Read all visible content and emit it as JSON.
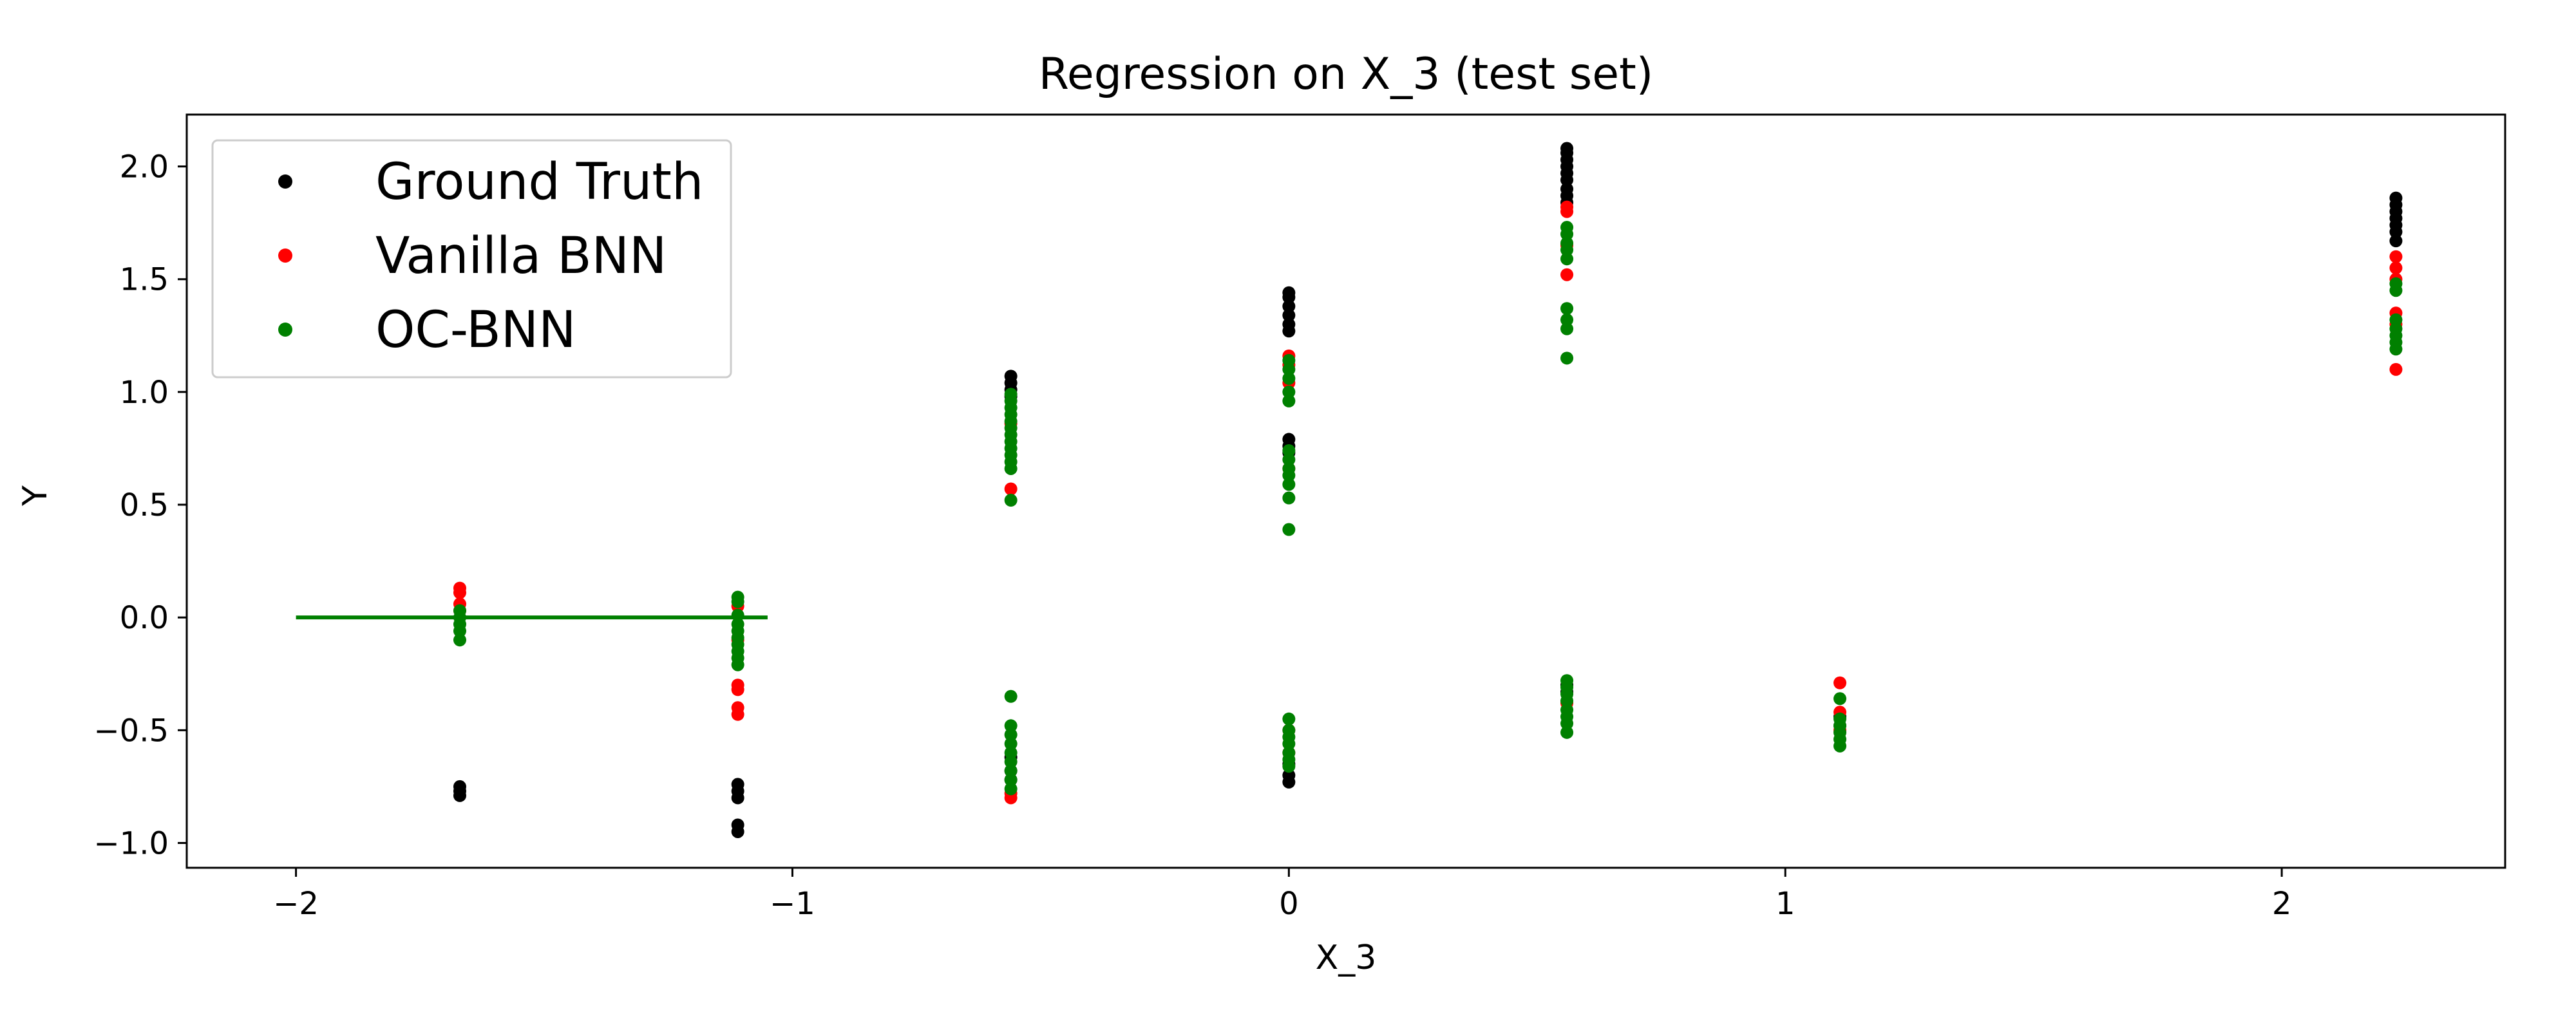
{
  "chart_data": {
    "type": "scatter",
    "title": "Regression on X_3 (test set)",
    "xlabel": "X_3",
    "ylabel": "Y",
    "xlim": [
      -2.22,
      2.45
    ],
    "ylim": [
      -1.11,
      2.23
    ],
    "xticks": [
      -2,
      -1,
      0,
      1,
      2
    ],
    "xtick_labels": [
      "−2",
      "−1",
      "0",
      "1",
      "2"
    ],
    "yticks": [
      -1.0,
      -0.5,
      0.0,
      0.5,
      1.0,
      1.5,
      2.0
    ],
    "ytick_labels": [
      "−1.0",
      "−0.5",
      "0.0",
      "0.5",
      "1.0",
      "1.5",
      "2.0"
    ],
    "grid": false,
    "legend_position": "top-left",
    "series": [
      {
        "name": "Ground Truth",
        "color": "#000000",
        "points": [
          [
            -1.67,
            -0.75
          ],
          [
            -1.67,
            -0.77
          ],
          [
            -1.67,
            -0.79
          ],
          [
            -1.11,
            -0.74
          ],
          [
            -1.11,
            -0.77
          ],
          [
            -1.11,
            -0.8
          ],
          [
            -1.11,
            -0.92
          ],
          [
            -1.11,
            -0.95
          ],
          [
            -0.56,
            1.07
          ],
          [
            -0.56,
            1.04
          ],
          [
            -0.56,
            1.01
          ],
          [
            -0.56,
            0.98
          ],
          [
            -0.56,
            -0.62
          ],
          [
            -0.56,
            -0.68
          ],
          [
            -0.56,
            -0.72
          ],
          [
            0.0,
            1.44
          ],
          [
            0.0,
            1.42
          ],
          [
            0.0,
            1.38
          ],
          [
            0.0,
            1.34
          ],
          [
            0.0,
            1.3
          ],
          [
            0.0,
            1.27
          ],
          [
            0.0,
            0.79
          ],
          [
            0.0,
            0.76
          ],
          [
            0.0,
            0.73
          ],
          [
            0.0,
            -0.65
          ],
          [
            0.0,
            -0.7
          ],
          [
            0.0,
            -0.73
          ],
          [
            0.56,
            2.08
          ],
          [
            0.56,
            2.06
          ],
          [
            0.56,
            2.03
          ],
          [
            0.56,
            2.0
          ],
          [
            0.56,
            1.97
          ],
          [
            0.56,
            1.94
          ],
          [
            0.56,
            1.9
          ],
          [
            0.56,
            1.87
          ],
          [
            0.56,
            1.84
          ],
          [
            0.56,
            -0.3
          ],
          [
            0.56,
            -0.33
          ],
          [
            1.11,
            -0.44
          ],
          [
            1.11,
            -0.48
          ],
          [
            2.23,
            1.86
          ],
          [
            2.23,
            1.83
          ],
          [
            2.23,
            1.8
          ],
          [
            2.23,
            1.77
          ],
          [
            2.23,
            1.74
          ],
          [
            2.23,
            1.71
          ],
          [
            2.23,
            1.67
          ]
        ]
      },
      {
        "name": "Vanilla BNN",
        "color": "#ff0000",
        "points": [
          [
            -1.67,
            0.13
          ],
          [
            -1.67,
            0.11
          ],
          [
            -1.67,
            0.06
          ],
          [
            -1.67,
            0.03
          ],
          [
            -1.11,
            0.05
          ],
          [
            -1.11,
            -0.1
          ],
          [
            -1.11,
            -0.3
          ],
          [
            -1.11,
            -0.32
          ],
          [
            -1.11,
            -0.4
          ],
          [
            -1.11,
            -0.43
          ],
          [
            -0.56,
            0.57
          ],
          [
            -0.56,
            0.86
          ],
          [
            -0.56,
            -0.78
          ],
          [
            -0.56,
            -0.8
          ],
          [
            0.0,
            1.16
          ],
          [
            0.0,
            1.12
          ],
          [
            0.0,
            1.04
          ],
          [
            0.0,
            0.66
          ],
          [
            0.0,
            -0.5
          ],
          [
            0.0,
            -0.6
          ],
          [
            0.56,
            1.82
          ],
          [
            0.56,
            1.8
          ],
          [
            0.56,
            1.65
          ],
          [
            0.56,
            1.52
          ],
          [
            0.56,
            -0.38
          ],
          [
            1.11,
            -0.29
          ],
          [
            1.11,
            -0.42
          ],
          [
            1.11,
            -0.5
          ],
          [
            2.23,
            1.6
          ],
          [
            2.23,
            1.55
          ],
          [
            2.23,
            1.5
          ],
          [
            2.23,
            1.35
          ],
          [
            2.23,
            1.3
          ],
          [
            2.23,
            1.1
          ]
        ]
      },
      {
        "name": "OC-BNN",
        "color": "#008000",
        "points": [
          [
            -1.67,
            0.03
          ],
          [
            -1.67,
            0.0
          ],
          [
            -1.67,
            -0.03
          ],
          [
            -1.67,
            -0.06
          ],
          [
            -1.67,
            -0.1
          ],
          [
            -1.11,
            0.09
          ],
          [
            -1.11,
            0.07
          ],
          [
            -1.11,
            0.01
          ],
          [
            -1.11,
            -0.03
          ],
          [
            -1.11,
            -0.06
          ],
          [
            -1.11,
            -0.09
          ],
          [
            -1.11,
            -0.12
          ],
          [
            -1.11,
            -0.15
          ],
          [
            -1.11,
            -0.18
          ],
          [
            -1.11,
            -0.21
          ],
          [
            -0.56,
            0.99
          ],
          [
            -0.56,
            0.96
          ],
          [
            -0.56,
            0.93
          ],
          [
            -0.56,
            0.9
          ],
          [
            -0.56,
            0.87
          ],
          [
            -0.56,
            0.84
          ],
          [
            -0.56,
            0.81
          ],
          [
            -0.56,
            0.78
          ],
          [
            -0.56,
            0.75
          ],
          [
            -0.56,
            0.72
          ],
          [
            -0.56,
            0.69
          ],
          [
            -0.56,
            0.66
          ],
          [
            -0.56,
            0.52
          ],
          [
            -0.56,
            -0.35
          ],
          [
            -0.56,
            -0.48
          ],
          [
            -0.56,
            -0.52
          ],
          [
            -0.56,
            -0.56
          ],
          [
            -0.56,
            -0.6
          ],
          [
            -0.56,
            -0.64
          ],
          [
            -0.56,
            -0.68
          ],
          [
            -0.56,
            -0.72
          ],
          [
            -0.56,
            -0.76
          ],
          [
            0.0,
            1.14
          ],
          [
            0.0,
            1.1
          ],
          [
            0.0,
            1.06
          ],
          [
            0.0,
            1.0
          ],
          [
            0.0,
            0.96
          ],
          [
            0.0,
            0.74
          ],
          [
            0.0,
            0.7
          ],
          [
            0.0,
            0.66
          ],
          [
            0.0,
            0.63
          ],
          [
            0.0,
            0.59
          ],
          [
            0.0,
            0.53
          ],
          [
            0.0,
            0.39
          ],
          [
            0.0,
            -0.45
          ],
          [
            0.0,
            -0.5
          ],
          [
            0.0,
            -0.53
          ],
          [
            0.0,
            -0.56
          ],
          [
            0.0,
            -0.6
          ],
          [
            0.0,
            -0.63
          ],
          [
            0.0,
            -0.66
          ],
          [
            0.56,
            1.73
          ],
          [
            0.56,
            1.7
          ],
          [
            0.56,
            1.66
          ],
          [
            0.56,
            1.63
          ],
          [
            0.56,
            1.59
          ],
          [
            0.56,
            1.37
          ],
          [
            0.56,
            1.32
          ],
          [
            0.56,
            1.28
          ],
          [
            0.56,
            1.15
          ],
          [
            0.56,
            -0.28
          ],
          [
            0.56,
            -0.31
          ],
          [
            0.56,
            -0.34
          ],
          [
            0.56,
            -0.37
          ],
          [
            0.56,
            -0.41
          ],
          [
            0.56,
            -0.44
          ],
          [
            0.56,
            -0.47
          ],
          [
            0.56,
            -0.51
          ],
          [
            1.11,
            -0.36
          ],
          [
            1.11,
            -0.45
          ],
          [
            1.11,
            -0.48
          ],
          [
            1.11,
            -0.51
          ],
          [
            1.11,
            -0.54
          ],
          [
            1.11,
            -0.57
          ],
          [
            2.23,
            1.48
          ],
          [
            2.23,
            1.45
          ],
          [
            2.23,
            1.32
          ],
          [
            2.23,
            1.28
          ],
          [
            2.23,
            1.25
          ],
          [
            2.23,
            1.22
          ],
          [
            2.23,
            1.19
          ]
        ]
      }
    ],
    "lines": [
      {
        "name": "OC-BNN",
        "color": "#008000",
        "x": [
          -2.0,
          -1.05
        ],
        "y": [
          0.0,
          0.0
        ]
      }
    ]
  }
}
